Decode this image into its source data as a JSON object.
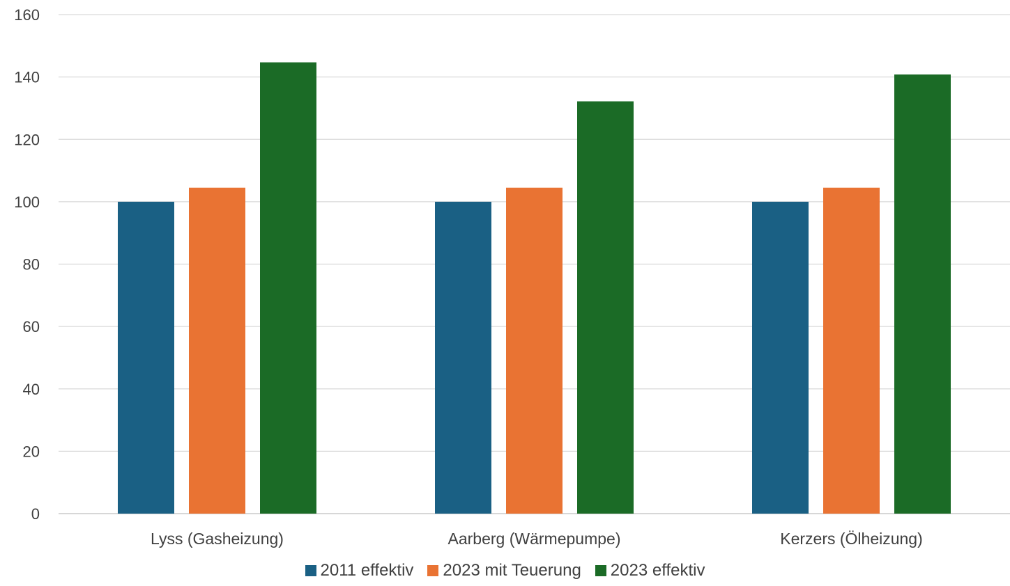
{
  "chart_data": {
    "type": "bar",
    "categories": [
      "Lyss (Gasheizung)",
      "Aarberg (Wärmepumpe)",
      "Kerzers (Ölheizung)"
    ],
    "series": [
      {
        "name": "2011 effektiv",
        "color": "#1a6084",
        "values": [
          100,
          100,
          100
        ]
      },
      {
        "name": "2023 mit Teuerung",
        "color": "#e97333",
        "values": [
          104.5,
          104.5,
          104.5
        ]
      },
      {
        "name": "2023 effektiv",
        "color": "#1b6b26",
        "values": [
          144.7,
          132.2,
          140.8
        ]
      }
    ],
    "ylim": [
      0,
      160
    ],
    "yticks": [
      0,
      20,
      40,
      60,
      80,
      100,
      120,
      140,
      160
    ],
    "grid": true,
    "legend_position": "bottom",
    "title": "",
    "xlabel": "",
    "ylabel": ""
  }
}
